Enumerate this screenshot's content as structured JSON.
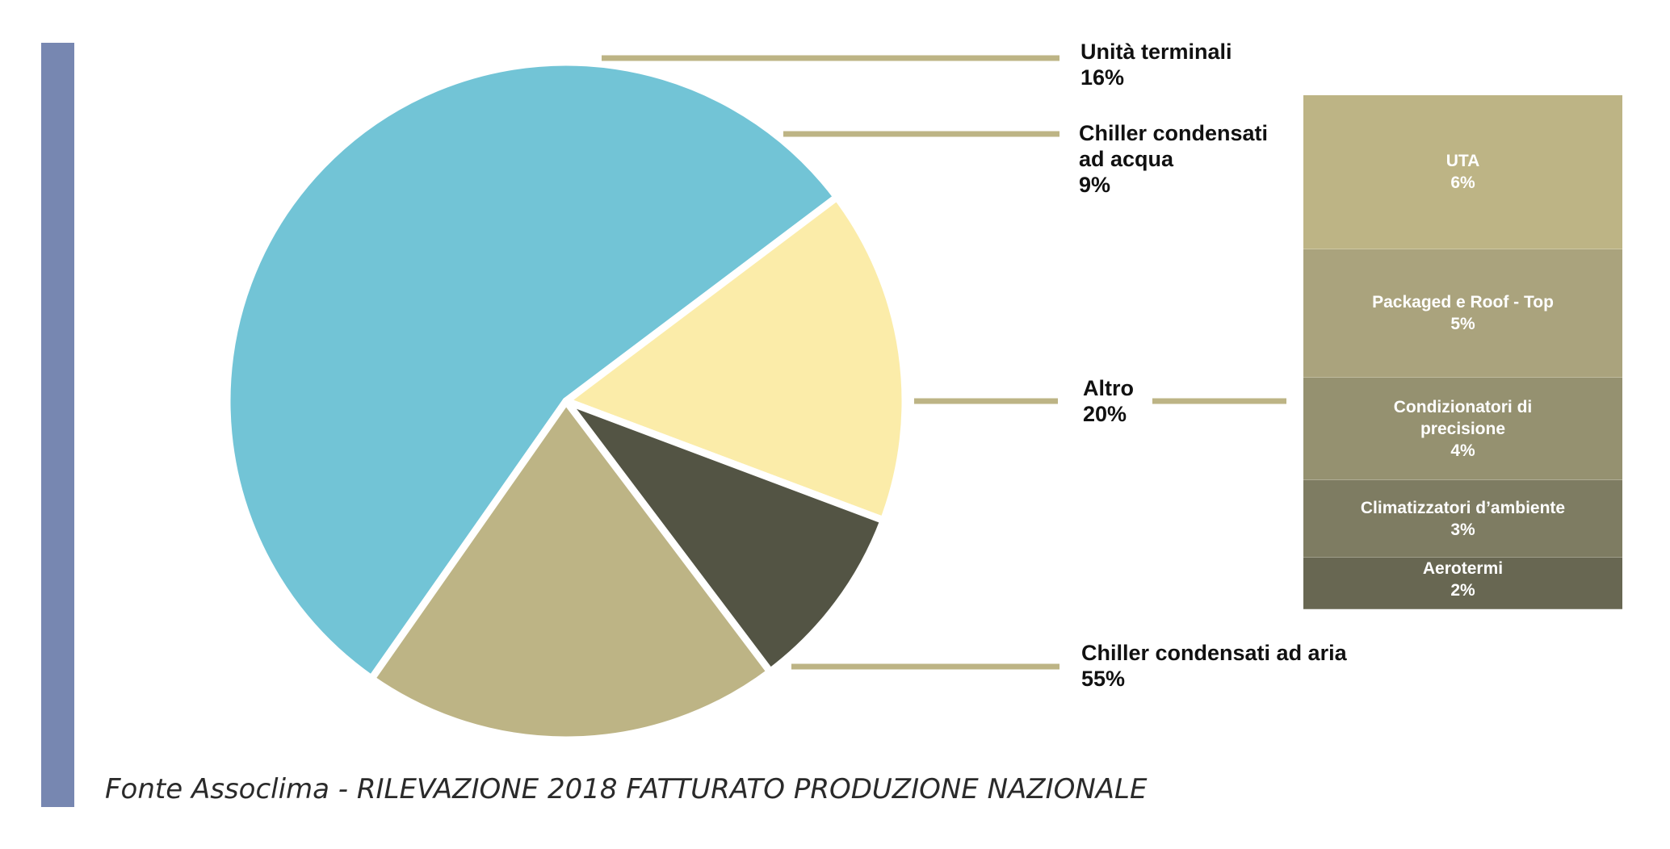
{
  "chart_data": [
    {
      "type": "pie",
      "title": "",
      "slices": [
        {
          "label": "Chiller condensati ad aria",
          "value": 55,
          "value_label": "55%",
          "color": "#72c4d6"
        },
        {
          "label": "Unità terminali",
          "value": 16,
          "value_label": "16%",
          "color": "#fbeca9"
        },
        {
          "label": "Chiller condensati ad acqua",
          "value": 9,
          "value_label": "9%",
          "color": "#535444"
        },
        {
          "label": "Altro",
          "value": 20,
          "value_label": "20%",
          "color": "#bdb485"
        }
      ],
      "leader_line_color": "#bdb485"
    },
    {
      "type": "bar",
      "subtype": "stacked-breakdown",
      "of_slice": "Altro",
      "categories": [
        "UTA",
        "Packaged e Roof - Top",
        "Condizionatori di precisione",
        "Climatizzatori d’ambiente",
        "Aerotermi"
      ],
      "values": [
        6,
        5,
        4,
        3,
        2
      ],
      "value_labels": [
        "6%",
        "5%",
        "4%",
        "3%",
        "2%"
      ],
      "colors": [
        "#bdb485",
        "#aaa37d",
        "#959170",
        "#7e7c62",
        "#686752"
      ]
    }
  ],
  "footer": {
    "source": "Fonte Assoclima - RILEVAZIONE 2018 FATTURATO PRODUZIONE NAZIONALE"
  },
  "accent_bar_color": "#7787b1"
}
